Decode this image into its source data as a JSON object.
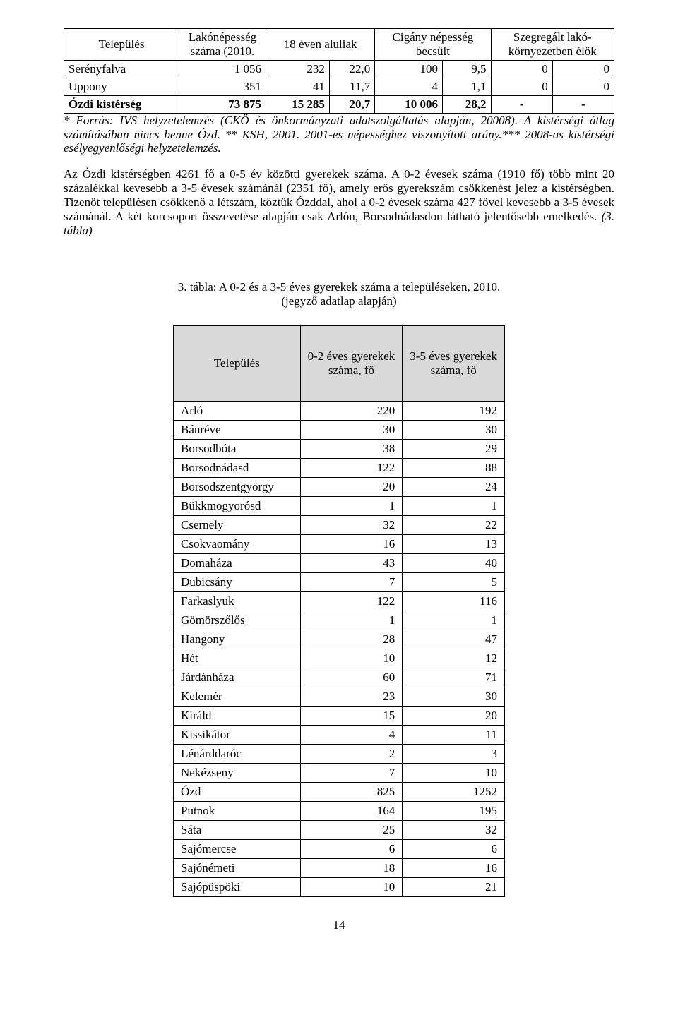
{
  "table1": {
    "headers": {
      "settlement": "Település",
      "population": "Lakónépesség száma (2010.",
      "under18": "18 éven aluliak",
      "roma": "Cigány népesség becsült",
      "segregated": "Szegregált lakó-környezetben élők"
    },
    "rows": [
      {
        "name": "Serényfalva",
        "pop": "1 056",
        "u18a": "232",
        "u18p": "22,0",
        "romaA": "100",
        "romaP": "9,5",
        "segA": "0",
        "segP": "0"
      },
      {
        "name": "Uppony",
        "pop": "351",
        "u18a": "41",
        "u18p": "11,7",
        "romaA": "4",
        "romaP": "1,1",
        "segA": "0",
        "segP": "0"
      }
    ],
    "total": {
      "name": "Ózdi kistérség",
      "pop": "73 875",
      "u18a": "15 285",
      "u18p": "20,7",
      "romaA": "10 006",
      "romaP": "28,2",
      "segA": "-",
      "segP": "-"
    }
  },
  "footnote": "* Forrás: IVS helyzetelemzés (CKÖ és önkormányzati adatszolgáltatás alapján, 20008). A kistérségi átlag számításában nincs benne Ózd. ** KSH, 2001. 2001-es népességhez viszonyított arány.*** 2008-as kistérségi esélyegyenlőségi helyzetelemzés.",
  "paragraph_part1": "Az Ózdi kistérségben 4261 fő a 0-5 év közötti gyerekek száma. A 0-2 évesek száma (1910 fő) több mint 20 százalékkal kevesebb a 3-5 évesek számánál (2351 fő), amely erős gyerekszám csökkenést jelez a kistérségben. Tizenöt településen csökkenő a létszám, köztük Ózddal, ahol a 0-2 évesek száma 427 fővel kevesebb a 3-5 évesek számánál. A két korcsoport összevetése alapján csak Arlón, Borsodnádasdon látható jelentősebb emelkedés. ",
  "paragraph_ref": "(3. tábla)",
  "caption_line1": "3. tábla: A 0-2 és a 3-5 éves gyerekek száma a településeken, 2010.",
  "caption_line2": "(jegyző adatlap alapján)",
  "table2": {
    "headers": {
      "settlement": "Település",
      "col02": "0-2 éves gyerekek száma, fő",
      "col35": "3-5 éves gyerekek száma, fő"
    },
    "rows": [
      {
        "name": "Arló",
        "a": "220",
        "b": "192"
      },
      {
        "name": "Bánréve",
        "a": "30",
        "b": "30"
      },
      {
        "name": "Borsodbóta",
        "a": "38",
        "b": "29"
      },
      {
        "name": "Borsodnádasd",
        "a": "122",
        "b": "88"
      },
      {
        "name": "Borsodszentgyörgy",
        "a": "20",
        "b": "24"
      },
      {
        "name": "Bükkmogyorósd",
        "a": "1",
        "b": "1"
      },
      {
        "name": "Csernely",
        "a": "32",
        "b": "22"
      },
      {
        "name": "Csokvaomány",
        "a": "16",
        "b": "13"
      },
      {
        "name": "Domaháza",
        "a": "43",
        "b": "40"
      },
      {
        "name": "Dubicsány",
        "a": "7",
        "b": "5"
      },
      {
        "name": "Farkaslyuk",
        "a": "122",
        "b": "116"
      },
      {
        "name": "Gömörszőlős",
        "a": "1",
        "b": "1"
      },
      {
        "name": "Hangony",
        "a": "28",
        "b": "47"
      },
      {
        "name": "Hét",
        "a": "10",
        "b": "12"
      },
      {
        "name": "Járdánháza",
        "a": "60",
        "b": "71"
      },
      {
        "name": "Kelemér",
        "a": "23",
        "b": "30"
      },
      {
        "name": "Királd",
        "a": "15",
        "b": "20"
      },
      {
        "name": "Kissikátor",
        "a": "4",
        "b": "11"
      },
      {
        "name": "Lénárddaróc",
        "a": "2",
        "b": "3"
      },
      {
        "name": "Nekézseny",
        "a": "7",
        "b": "10"
      },
      {
        "name": "Ózd",
        "a": "825",
        "b": "1252"
      },
      {
        "name": "Putnok",
        "a": "164",
        "b": "195"
      },
      {
        "name": "Sáta",
        "a": "25",
        "b": "32"
      },
      {
        "name": "Sajómercse",
        "a": "6",
        "b": "6"
      },
      {
        "name": "Sajónémeti",
        "a": "18",
        "b": "16"
      },
      {
        "name": "Sajópüspöki",
        "a": "10",
        "b": "21"
      }
    ]
  },
  "pagenum": "14"
}
